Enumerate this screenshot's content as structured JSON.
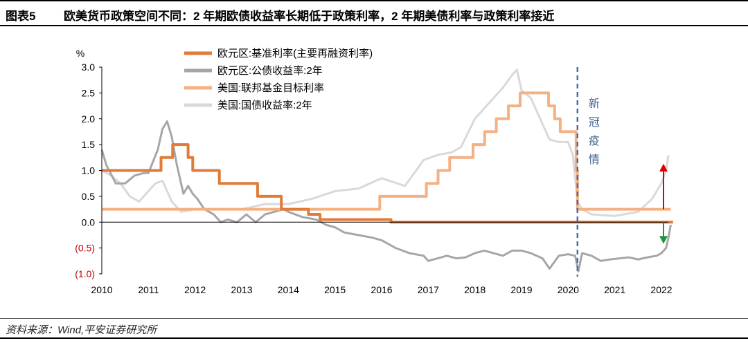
{
  "header": {
    "label": "图表5",
    "title": "欧美货币政策空间不同：2 年期欧债收益率长期低于政策利率，2 年期美债利率与政策利率接近"
  },
  "footer": {
    "source": "资料来源：Wind,平安证券研究所"
  },
  "colors": {
    "ecb_rate": "#e07b39",
    "eu_bond": "#a6a6a6",
    "fed_rate": "#f4b183",
    "us_bond": "#d9d9d9",
    "covid_line": "#4a6fa5",
    "up_arrow": "#e00000",
    "down_arrow": "#1a9641"
  },
  "chart_data": {
    "type": "line",
    "ylabel": "%",
    "ylim": [
      -1.0,
      3.0
    ],
    "xlim": [
      2010,
      2022.3
    ],
    "y_ticks": [
      {
        "value": 3.0,
        "label": "3.0"
      },
      {
        "value": 2.5,
        "label": "2.5"
      },
      {
        "value": 2.0,
        "label": "2.0"
      },
      {
        "value": 1.5,
        "label": "1.5"
      },
      {
        "value": 1.0,
        "label": "1.0"
      },
      {
        "value": 0.5,
        "label": "0.5"
      },
      {
        "value": 0.0,
        "label": "0.0"
      },
      {
        "value": -0.5,
        "label": "(0.5)"
      },
      {
        "value": -1.0,
        "label": "(1.0)"
      }
    ],
    "x_ticks": [
      "2010",
      "2011",
      "2012",
      "2013",
      "2014",
      "2015",
      "2016",
      "2017",
      "2018",
      "2019",
      "2020",
      "2021",
      "2022"
    ],
    "legend_position": "top-center",
    "grid": false,
    "series": [
      {
        "name": "欧元区:基准利率(主要再融资利率)",
        "color_key": "ecb_rate",
        "step": true,
        "points": [
          [
            2010,
            1.0
          ],
          [
            2011.27,
            1.25
          ],
          [
            2011.52,
            1.5
          ],
          [
            2011.85,
            1.25
          ],
          [
            2011.95,
            1.0
          ],
          [
            2012.52,
            0.75
          ],
          [
            2013.34,
            0.5
          ],
          [
            2013.85,
            0.25
          ],
          [
            2014.43,
            0.15
          ],
          [
            2014.68,
            0.05
          ],
          [
            2016.2,
            0.0
          ],
          [
            2022.25,
            0.0
          ]
        ]
      },
      {
        "name": "欧元区:公债收益率:2年",
        "color_key": "eu_bond",
        "points": [
          [
            2010,
            1.4
          ],
          [
            2010.1,
            1.1
          ],
          [
            2010.3,
            0.75
          ],
          [
            2010.5,
            0.75
          ],
          [
            2010.7,
            0.9
          ],
          [
            2010.9,
            0.95
          ],
          [
            2011.0,
            0.95
          ],
          [
            2011.2,
            1.4
          ],
          [
            2011.3,
            1.8
          ],
          [
            2011.4,
            1.95
          ],
          [
            2011.5,
            1.65
          ],
          [
            2011.6,
            1.15
          ],
          [
            2011.75,
            0.55
          ],
          [
            2011.85,
            0.7
          ],
          [
            2011.95,
            0.55
          ],
          [
            2012.05,
            0.45
          ],
          [
            2012.2,
            0.25
          ],
          [
            2012.4,
            0.15
          ],
          [
            2012.55,
            0.0
          ],
          [
            2012.7,
            0.05
          ],
          [
            2012.9,
            0.0
          ],
          [
            2013.1,
            0.15
          ],
          [
            2013.3,
            0.0
          ],
          [
            2013.5,
            0.15
          ],
          [
            2013.7,
            0.2
          ],
          [
            2013.9,
            0.25
          ],
          [
            2014.0,
            0.2
          ],
          [
            2014.3,
            0.1
          ],
          [
            2014.6,
            0.05
          ],
          [
            2014.8,
            -0.05
          ],
          [
            2015.0,
            -0.1
          ],
          [
            2015.2,
            -0.2
          ],
          [
            2015.5,
            -0.25
          ],
          [
            2015.8,
            -0.3
          ],
          [
            2016.0,
            -0.35
          ],
          [
            2016.3,
            -0.5
          ],
          [
            2016.6,
            -0.6
          ],
          [
            2016.9,
            -0.65
          ],
          [
            2017.0,
            -0.75
          ],
          [
            2017.2,
            -0.7
          ],
          [
            2017.4,
            -0.65
          ],
          [
            2017.6,
            -0.7
          ],
          [
            2017.8,
            -0.68
          ],
          [
            2018.0,
            -0.6
          ],
          [
            2018.2,
            -0.55
          ],
          [
            2018.4,
            -0.6
          ],
          [
            2018.6,
            -0.65
          ],
          [
            2018.8,
            -0.55
          ],
          [
            2019.0,
            -0.55
          ],
          [
            2019.2,
            -0.6
          ],
          [
            2019.45,
            -0.7
          ],
          [
            2019.6,
            -0.9
          ],
          [
            2019.8,
            -0.65
          ],
          [
            2020.0,
            -0.62
          ],
          [
            2020.15,
            -0.65
          ],
          [
            2020.22,
            -0.95
          ],
          [
            2020.3,
            -0.6
          ],
          [
            2020.5,
            -0.65
          ],
          [
            2020.7,
            -0.75
          ],
          [
            2020.9,
            -0.72
          ],
          [
            2021.1,
            -0.7
          ],
          [
            2021.3,
            -0.68
          ],
          [
            2021.5,
            -0.72
          ],
          [
            2021.7,
            -0.68
          ],
          [
            2021.9,
            -0.65
          ],
          [
            2022.0,
            -0.6
          ],
          [
            2022.1,
            -0.5
          ],
          [
            2022.15,
            -0.3
          ],
          [
            2022.2,
            -0.05
          ]
        ]
      },
      {
        "name": "美国:联邦基金目标利率",
        "color_key": "fed_rate",
        "step": true,
        "points": [
          [
            2010,
            0.25
          ],
          [
            2015.96,
            0.5
          ],
          [
            2016.96,
            0.75
          ],
          [
            2017.21,
            1.0
          ],
          [
            2017.46,
            1.25
          ],
          [
            2017.96,
            1.5
          ],
          [
            2018.21,
            1.75
          ],
          [
            2018.46,
            2.0
          ],
          [
            2018.72,
            2.25
          ],
          [
            2018.97,
            2.5
          ],
          [
            2019.58,
            2.25
          ],
          [
            2019.71,
            2.0
          ],
          [
            2019.83,
            1.75
          ],
          [
            2020.17,
            1.0
          ],
          [
            2020.2,
            0.25
          ],
          [
            2022.2,
            0.25
          ]
        ]
      },
      {
        "name": "美国:国债收益率:2年",
        "color_key": "us_bond",
        "points": [
          [
            2010,
            1.0
          ],
          [
            2010.2,
            0.9
          ],
          [
            2010.4,
            0.75
          ],
          [
            2010.6,
            0.5
          ],
          [
            2010.8,
            0.4
          ],
          [
            2011.0,
            0.6
          ],
          [
            2011.15,
            0.75
          ],
          [
            2011.3,
            0.8
          ],
          [
            2011.5,
            0.4
          ],
          [
            2011.7,
            0.2
          ],
          [
            2012.0,
            0.25
          ],
          [
            2012.5,
            0.25
          ],
          [
            2013.0,
            0.25
          ],
          [
            2013.5,
            0.35
          ],
          [
            2014.0,
            0.35
          ],
          [
            2014.5,
            0.45
          ],
          [
            2015.0,
            0.6
          ],
          [
            2015.5,
            0.65
          ],
          [
            2016.0,
            0.85
          ],
          [
            2016.5,
            0.7
          ],
          [
            2016.9,
            1.2
          ],
          [
            2017.2,
            1.3
          ],
          [
            2017.5,
            1.35
          ],
          [
            2017.7,
            1.45
          ],
          [
            2018.0,
            2.0
          ],
          [
            2018.3,
            2.3
          ],
          [
            2018.6,
            2.6
          ],
          [
            2018.8,
            2.85
          ],
          [
            2018.9,
            2.95
          ],
          [
            2019.0,
            2.55
          ],
          [
            2019.2,
            2.4
          ],
          [
            2019.4,
            2.0
          ],
          [
            2019.6,
            1.6
          ],
          [
            2019.8,
            1.55
          ],
          [
            2020.0,
            1.55
          ],
          [
            2020.1,
            1.3
          ],
          [
            2020.2,
            0.4
          ],
          [
            2020.3,
            0.25
          ],
          [
            2020.5,
            0.15
          ],
          [
            2021.0,
            0.12
          ],
          [
            2021.5,
            0.2
          ],
          [
            2021.8,
            0.45
          ],
          [
            2022.0,
            0.75
          ],
          [
            2022.1,
            1.0
          ],
          [
            2022.15,
            1.3
          ]
        ]
      }
    ],
    "annotations": [
      {
        "text": "新冠疫情",
        "x": 2020.2
      }
    ]
  }
}
